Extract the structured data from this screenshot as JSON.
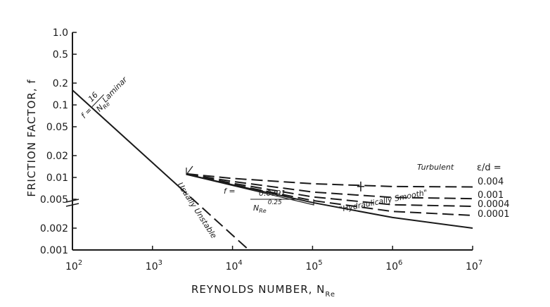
{
  "chart_data": {
    "type": "line",
    "title": "",
    "xlabel": "REYNOLDS NUMBER, N",
    "xlabel_sub": "Re",
    "ylabel": "FRICTION FACTOR, f",
    "xscale": "log",
    "yscale": "log",
    "xlim": [
      100,
      10000000
    ],
    "ylim": [
      0.001,
      1.0
    ],
    "grid": false,
    "x_ticks": [
      {
        "value": 100,
        "label": "10",
        "exp": "2"
      },
      {
        "value": 1000,
        "label": "10",
        "exp": "3"
      },
      {
        "value": 10000,
        "label": "10",
        "exp": "4"
      },
      {
        "value": 100000,
        "label": "10",
        "exp": "5"
      },
      {
        "value": 1000000,
        "label": "10",
        "exp": "6"
      },
      {
        "value": 10000000,
        "label": "10",
        "exp": "7"
      }
    ],
    "y_ticks": [
      {
        "value": 1.0,
        "label": "1.0"
      },
      {
        "value": 0.5,
        "label": "0.5"
      },
      {
        "value": 0.2,
        "label": "0.2"
      },
      {
        "value": 0.1,
        "label": "0.1"
      },
      {
        "value": 0.05,
        "label": "0.05"
      },
      {
        "value": 0.02,
        "label": "0.02"
      },
      {
        "value": 0.01,
        "label": "0.01"
      },
      {
        "value": 0.005,
        "label": "0.005"
      },
      {
        "value": 0.002,
        "label": "0.002"
      },
      {
        "value": 0.001,
        "label": "0.001"
      }
    ],
    "series": [
      {
        "name": "Laminar",
        "style": "solid",
        "points": [
          [
            100,
            0.16
          ],
          [
            2100,
            0.0076
          ]
        ]
      },
      {
        "name": "Usually Unstable",
        "style": "dashed",
        "points": [
          [
            2100,
            0.0076
          ],
          [
            16000,
            0.001
          ]
        ]
      },
      {
        "name": "Hydraulically Smooth",
        "style": "solid",
        "points": [
          [
            2700,
            0.011
          ],
          [
            10000,
            0.0079
          ],
          [
            100000,
            0.0045
          ],
          [
            1000000,
            0.0028
          ],
          [
            10000000,
            0.002
          ]
        ]
      },
      {
        "name": "0.004",
        "style": "dashed",
        "points": [
          [
            2700,
            0.0112
          ],
          [
            10000,
            0.0097
          ],
          [
            100000,
            0.0082
          ],
          [
            1000000,
            0.0075
          ],
          [
            10000000,
            0.0074
          ]
        ]
      },
      {
        "name": "0.001",
        "style": "dashed",
        "points": [
          [
            2700,
            0.0111
          ],
          [
            10000,
            0.0088
          ],
          [
            100000,
            0.0063
          ],
          [
            1000000,
            0.0053
          ],
          [
            10000000,
            0.0051
          ]
        ]
      },
      {
        "name": "0.0004",
        "style": "dashed",
        "points": [
          [
            2700,
            0.011
          ],
          [
            10000,
            0.0083
          ],
          [
            100000,
            0.0054
          ],
          [
            1000000,
            0.0042
          ],
          [
            10000000,
            0.004
          ]
        ]
      },
      {
        "name": "0.0001",
        "style": "dashed",
        "points": [
          [
            2700,
            0.011
          ],
          [
            10000,
            0.008
          ],
          [
            100000,
            0.0048
          ],
          [
            1000000,
            0.0034
          ],
          [
            10000000,
            0.003
          ]
        ]
      }
    ],
    "annotations": {
      "laminar": "Laminar",
      "laminar_eq_lhs": "f =",
      "laminar_eq_num": "16",
      "laminar_eq_den": "N",
      "laminar_eq_den_sub": "Re",
      "unstable": "Usually Unstable",
      "turbulent_eq_lhs": "f  =",
      "turbulent_eq_num": "0.0791",
      "turbulent_eq_den": "N",
      "turbulent_eq_den_sub": "Re",
      "turbulent_eq_den_exp": "0.25",
      "smooth": "\"Hydraulically Smooth\"",
      "turbulent": "Turbulent",
      "eps_header": "ε/d ="
    },
    "epsilon_labels": [
      "0.004",
      "0.001",
      "0.0004",
      "0.0001"
    ],
    "marker": {
      "x": 400000,
      "y": 0.0075
    }
  }
}
